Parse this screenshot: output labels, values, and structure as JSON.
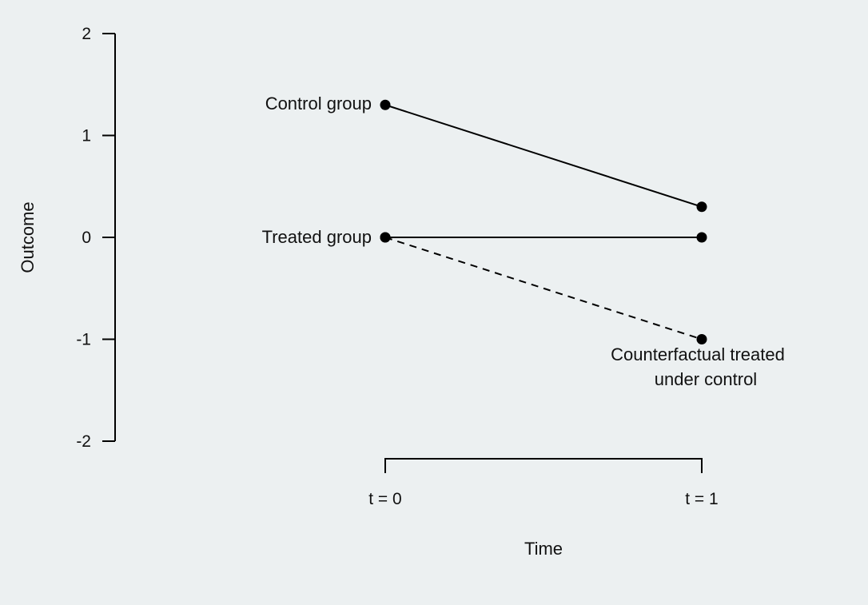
{
  "chart_data": {
    "type": "line",
    "title": "",
    "xlabel": "Time",
    "ylabel": "Outcome",
    "categories": [
      "t = 0",
      "t = 1"
    ],
    "yticks": [
      "2",
      "1",
      "0",
      "-1",
      "-2"
    ],
    "ylim": [
      -2,
      2
    ],
    "grid": false,
    "legend": "none",
    "background_color": "#ecf0f1",
    "line_color": "#000000",
    "series": [
      {
        "values": [
          1.3,
          0.3
        ],
        "style": "solid"
      },
      {
        "values": [
          0,
          0
        ],
        "style": "solid"
      },
      {
        "values": [
          0,
          -1
        ],
        "style": "dashed"
      }
    ],
    "annotations": [
      {
        "text": "Control group"
      },
      {
        "text": "Treated group"
      },
      {
        "text": "Counterfactual treated"
      },
      {
        "text": "under control"
      }
    ]
  }
}
